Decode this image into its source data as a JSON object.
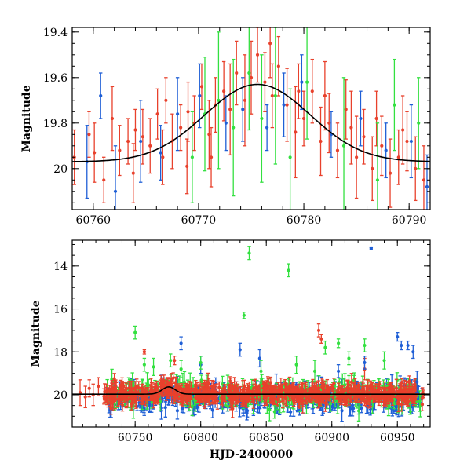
{
  "chart_data": [
    {
      "type": "scatter",
      "name": "zoom-panel",
      "xlabel": "",
      "ylabel": "Magnitude",
      "xlim": [
        60758,
        60792
      ],
      "ylim": [
        20.18,
        19.38
      ],
      "y_inverted": true,
      "x_ticks": [
        60760,
        60770,
        60780,
        60790
      ],
      "x_tick_labels": [
        "60760",
        "60770",
        "60780",
        "60790"
      ],
      "y_ticks": [
        19.4,
        19.6,
        19.8,
        20.0
      ],
      "y_tick_labels": [
        "19.4",
        "19.6",
        "19.8",
        "20"
      ],
      "model_curve": {
        "type": "gaussian",
        "baseline": 19.97,
        "peak_mag": 19.63,
        "t0": 60775.6,
        "sigma": 5.0,
        "color": "#000000"
      },
      "series": [
        {
          "name": "red",
          "color": "#e8412c",
          "points": [
            [
              60758.2,
              19.95,
              0.12
            ],
            [
              60759.6,
              19.85,
              0.1
            ],
            [
              60760.1,
              19.93,
              0.13
            ],
            [
              60761.0,
              20.05,
              0.1
            ],
            [
              60761.8,
              19.78,
              0.14
            ],
            [
              60762.5,
              19.92,
              0.11
            ],
            [
              60763.3,
              19.88,
              0.1
            ],
            [
              60764.0,
              19.83,
              0.09
            ],
            [
              60764.7,
              19.86,
              0.12
            ],
            [
              60765.4,
              19.9,
              0.12
            ],
            [
              60766.1,
              19.76,
              0.11
            ],
            [
              60766.9,
              19.7,
              0.1
            ],
            [
              60767.5,
              19.88,
              0.12
            ],
            [
              60768.3,
              19.82,
              0.1
            ],
            [
              60769.0,
              19.75,
              0.13
            ],
            [
              60769.6,
              19.8,
              0.12
            ],
            [
              60770.3,
              19.64,
              0.1
            ],
            [
              60771.0,
              19.85,
              0.15
            ],
            [
              60771.6,
              19.72,
              0.12
            ],
            [
              60772.4,
              19.66,
              0.13
            ],
            [
              60773.0,
              19.74,
              0.2
            ],
            [
              60773.6,
              19.58,
              0.14
            ],
            [
              60774.4,
              19.7,
              0.2
            ],
            [
              60775.0,
              19.6,
              0.16
            ],
            [
              60775.6,
              19.5,
              0.12
            ],
            [
              60776.3,
              19.62,
              0.13
            ],
            [
              60777.0,
              19.68,
              0.14
            ],
            [
              60777.6,
              19.55,
              0.13
            ],
            [
              60778.4,
              19.72,
              0.16
            ],
            [
              60779.2,
              19.84,
              0.2
            ],
            [
              60780.0,
              19.78,
              0.12
            ],
            [
              60780.8,
              19.66,
              0.14
            ],
            [
              60781.6,
              19.88,
              0.15
            ],
            [
              60782.4,
              19.8,
              0.13
            ],
            [
              60783.2,
              19.92,
              0.12
            ],
            [
              60784.0,
              19.74,
              0.13
            ],
            [
              60785.0,
              19.95,
              0.18
            ],
            [
              60785.7,
              19.86,
              0.12
            ],
            [
              60786.5,
              20.0,
              0.14
            ],
            [
              60787.4,
              19.9,
              0.13
            ],
            [
              60788.2,
              20.02,
              0.15
            ],
            [
              60789.0,
              19.95,
              0.12
            ],
            [
              60789.8,
              19.88,
              0.13
            ],
            [
              60790.6,
              20.0,
              0.14
            ],
            [
              60791.4,
              20.05,
              0.15
            ],
            [
              60763.8,
              20.02,
              0.13
            ],
            [
              60766.6,
              19.95,
              0.12
            ],
            [
              60768.9,
              19.99,
              0.12
            ],
            [
              60771.2,
              19.95,
              0.13
            ],
            [
              60776.8,
              19.45,
              0.15
            ],
            [
              60779.5,
              19.66,
              0.12
            ],
            [
              60782.0,
              19.68,
              0.15
            ],
            [
              60784.5,
              19.82,
              0.16
            ],
            [
              60786.9,
              19.78,
              0.12
            ],
            [
              60789.4,
              19.83,
              0.15
            ]
          ]
        },
        {
          "name": "blue",
          "color": "#1f5fd6",
          "points": [
            [
              60759.4,
              19.97,
              0.16
            ],
            [
              60760.7,
              19.68,
              0.1
            ],
            [
              60762.1,
              20.1,
              0.2
            ],
            [
              60764.5,
              19.88,
              0.18
            ],
            [
              60766.4,
              19.93,
              0.12
            ],
            [
              60768.0,
              19.76,
              0.16
            ],
            [
              60770.1,
              19.68,
              0.14
            ],
            [
              60772.6,
              19.8,
              0.12
            ],
            [
              60774.2,
              19.74,
              0.14
            ],
            [
              60776.5,
              19.82,
              0.1
            ],
            [
              60778.1,
              19.72,
              0.14
            ],
            [
              60779.8,
              19.62,
              0.12
            ],
            [
              60782.6,
              19.85,
              0.1
            ],
            [
              60785.4,
              19.78,
              0.12
            ],
            [
              60787.8,
              19.92,
              0.12
            ],
            [
              60790.2,
              19.88,
              0.16
            ],
            [
              60791.7,
              20.08,
              0.14
            ]
          ]
        },
        {
          "name": "green",
          "color": "#33e040",
          "points": [
            [
              60769.4,
              19.95,
              0.2
            ],
            [
              60770.6,
              19.76,
              0.25
            ],
            [
              60771.9,
              19.7,
              0.3
            ],
            [
              60773.3,
              19.82,
              0.3
            ],
            [
              60774.8,
              19.58,
              0.25
            ],
            [
              60776.0,
              19.78,
              0.28
            ],
            [
              60777.3,
              19.68,
              0.3
            ],
            [
              60778.7,
              19.95,
              0.3
            ],
            [
              60780.3,
              19.62,
              0.25
            ],
            [
              60783.8,
              19.9,
              0.3
            ],
            [
              60787.0,
              20.05,
              0.25
            ],
            [
              60788.6,
              19.72,
              0.2
            ],
            [
              60790.9,
              19.8,
              0.2
            ]
          ]
        }
      ]
    },
    {
      "type": "scatter",
      "name": "full-panel",
      "xlabel": "HJD-2400000",
      "ylabel": "Magnitude",
      "xlim": [
        60702,
        60975
      ],
      "ylim": [
        21.5,
        12.8
      ],
      "y_inverted": true,
      "x_ticks": [
        60750,
        60800,
        60850,
        60900,
        60950
      ],
      "x_tick_labels": [
        "60750",
        "60800",
        "60850",
        "60900",
        "60950"
      ],
      "y_ticks": [
        14,
        16,
        18,
        20
      ],
      "y_tick_labels": [
        "14",
        "16",
        "18",
        "20"
      ],
      "model_curve": {
        "type": "gaussian",
        "baseline": 19.97,
        "peak_mag": 19.63,
        "t0": 60775.6,
        "sigma": 5.0,
        "color": "#000000"
      },
      "background_bands": [
        {
          "color": "#1f5fd6",
          "x_range": [
            60728,
            60970
          ],
          "center": 20.15,
          "spread": 0.55,
          "err": 0.35,
          "count": 420
        },
        {
          "color": "#33e040",
          "x_range": [
            60728,
            60970
          ],
          "center": 19.95,
          "spread": 0.6,
          "err": 0.4,
          "count": 260
        },
        {
          "color": "#e8412c",
          "x_range": [
            60726,
            60970
          ],
          "center": 19.95,
          "spread": 0.42,
          "err": 0.3,
          "count": 640
        }
      ],
      "series": [
        {
          "name": "red",
          "color": "#e8412c",
          "points": [
            [
              60708,
              19.9,
              0.6
            ],
            [
              60712,
              20.1,
              0.5
            ],
            [
              60715,
              19.7,
              0.4
            ],
            [
              60718,
              20.0,
              0.5
            ],
            [
              60722,
              19.6,
              0.4
            ],
            [
              60757,
              18.0,
              0.1
            ],
            [
              60780,
              18.4,
              0.2
            ],
            [
              60890,
              17.0,
              0.3
            ],
            [
              60892,
              17.4,
              0.2
            ],
            [
              60925,
              18.8,
              0.5
            ]
          ]
        },
        {
          "name": "blue",
          "color": "#1f5fd6",
          "points": [
            [
              60785,
              17.6,
              0.3
            ],
            [
              60800,
              18.6,
              0.4
            ],
            [
              60830,
              17.9,
              0.3
            ],
            [
              60845,
              18.3,
              0.4
            ],
            [
              60905,
              18.9,
              0.3
            ],
            [
              60925,
              18.5,
              0.3
            ],
            [
              60930,
              13.2,
              0.05
            ],
            [
              60950,
              17.3,
              0.2
            ],
            [
              60953,
              17.7,
              0.2
            ],
            [
              60958,
              17.7,
              0.2
            ],
            [
              60962,
              18.0,
              0.3
            ],
            [
              60965,
              19.4,
              0.5
            ]
          ]
        },
        {
          "name": "green",
          "color": "#33e040",
          "points": [
            [
              60750,
              17.1,
              0.3
            ],
            [
              60757,
              18.6,
              0.3
            ],
            [
              60764,
              18.7,
              0.4
            ],
            [
              60777,
              18.4,
              0.3
            ],
            [
              60785,
              18.8,
              0.4
            ],
            [
              60800,
              18.5,
              0.3
            ],
            [
              60833,
              16.3,
              0.15
            ],
            [
              60837,
              13.4,
              0.3
            ],
            [
              60846,
              18.9,
              0.5
            ],
            [
              60867,
              14.2,
              0.3
            ],
            [
              60873,
              18.6,
              0.4
            ],
            [
              60887,
              18.9,
              0.5
            ],
            [
              60895,
              17.8,
              0.3
            ],
            [
              60905,
              17.6,
              0.2
            ],
            [
              60913,
              18.3,
              0.3
            ],
            [
              60925,
              17.7,
              0.3
            ],
            [
              60940,
              18.4,
              0.4
            ]
          ]
        }
      ]
    }
  ]
}
